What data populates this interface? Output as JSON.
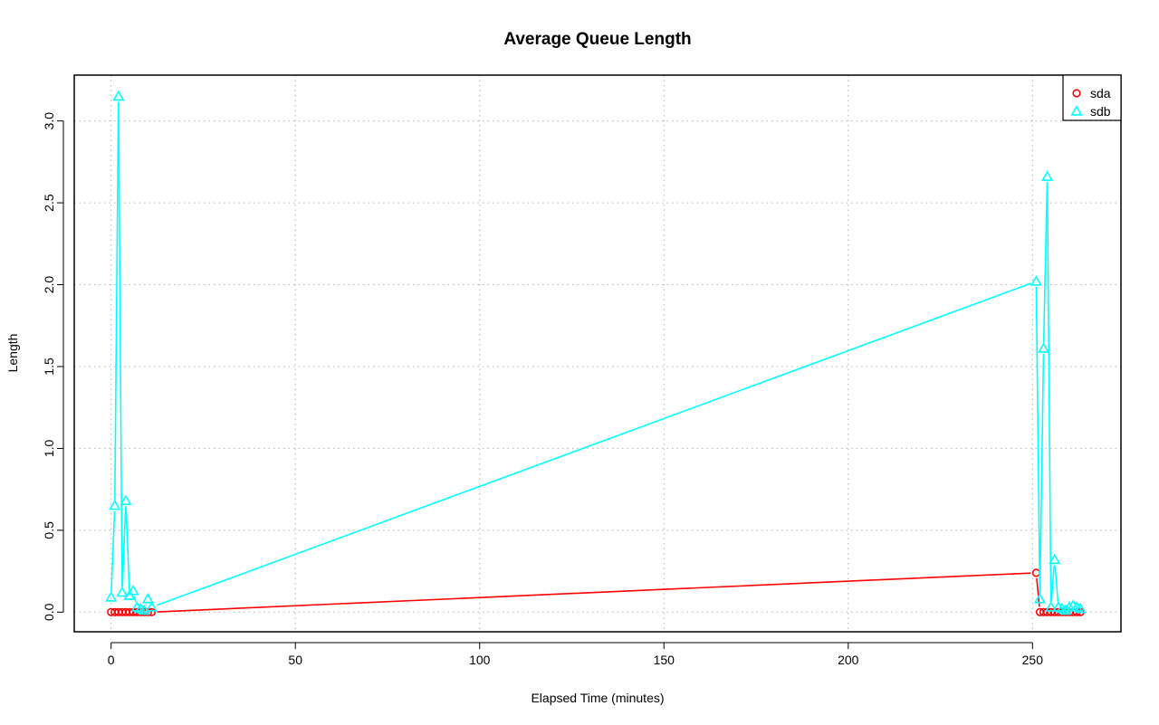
{
  "chart_data": {
    "type": "line",
    "title": "Average Queue Length",
    "xlabel": "Elapsed Time (minutes)",
    "ylabel": "Length",
    "xlim": [
      -10,
      274
    ],
    "ylim": [
      -0.12,
      3.28
    ],
    "x_ticks": [
      0,
      50,
      100,
      150,
      200,
      250
    ],
    "y_ticks": [
      0.0,
      0.5,
      1.0,
      1.5,
      2.0,
      2.5,
      3.0
    ],
    "x_tick_labels": [
      "0",
      "50",
      "100",
      "150",
      "200",
      "250"
    ],
    "y_tick_labels": [
      "0.0",
      "0.5",
      "1.0",
      "1.5",
      "2.0",
      "2.5",
      "3.0"
    ],
    "grid": true,
    "legend_position": "top-right",
    "series": [
      {
        "name": "sda",
        "color": "#ff0000",
        "marker": "circle",
        "x": [
          0,
          1,
          2,
          3,
          4,
          5,
          6,
          7,
          8,
          9,
          10,
          11,
          251,
          252,
          253,
          254,
          255,
          256,
          257,
          258,
          259,
          260,
          261,
          262,
          263
        ],
        "y": [
          0,
          0,
          0,
          0,
          0,
          0,
          0,
          0,
          0,
          0,
          0,
          0,
          0.24,
          0,
          0,
          0,
          0,
          0,
          0,
          0,
          0,
          0,
          0,
          0,
          0
        ]
      },
      {
        "name": "sdb",
        "color": "#00ffff",
        "marker": "triangle",
        "x": [
          0,
          1,
          2,
          3,
          4,
          5,
          6,
          7,
          8,
          9,
          10,
          11,
          251,
          252,
          253,
          254,
          255,
          256,
          257,
          258,
          259,
          260,
          261,
          262,
          263
        ],
        "y": [
          0.09,
          0.65,
          3.15,
          0.12,
          0.68,
          0.1,
          0.13,
          0.03,
          0.02,
          0.01,
          0.08,
          0.03,
          2.02,
          0.08,
          1.61,
          2.66,
          0.03,
          0.32,
          0.03,
          0.02,
          0.01,
          0.03,
          0.04,
          0.03,
          0.02
        ]
      }
    ]
  }
}
